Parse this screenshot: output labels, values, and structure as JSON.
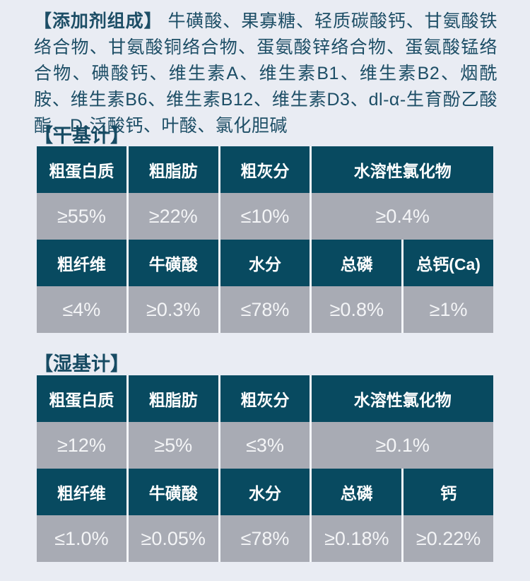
{
  "colors": {
    "background": "#e9ecf3",
    "header_cell": "#084a60",
    "value_cell": "#a8abb4",
    "body_text": "#1d4e66"
  },
  "additives": {
    "label": "【添加剂组成】",
    "text": "牛磺酸、果寡糖、轻质碳酸钙、甘氨酸铁络合物、甘氨酸铜络合物、蛋氨酸锌络合物、蛋氨酸锰络合物、碘酸钙、维生素A、维生素B1、维生素B2、烟酰胺、维生素B6、维生素B12、维生素D3、dl-α-生育酚乙酸酯、D-泛酸钙、叶酸、氯化胆碱"
  },
  "dry": {
    "title": "【干基计】",
    "r1h": [
      "粗蛋白质",
      "粗脂肪",
      "粗灰分",
      "水溶性氯化物"
    ],
    "r1v": [
      "≥55%",
      "≥22%",
      "≤10%",
      "≥0.4%"
    ],
    "r2h": [
      "粗纤维",
      "牛磺酸",
      "水分",
      "总磷",
      "总钙(Ca)"
    ],
    "r2v": [
      "≤4%",
      "≥0.3%",
      "≤78%",
      "≥0.8%",
      "≥1%"
    ]
  },
  "wet": {
    "title": "【湿基计】",
    "r1h": [
      "粗蛋白质",
      "粗脂肪",
      "粗灰分",
      "水溶性氯化物"
    ],
    "r1v": [
      "≥12%",
      "≥5%",
      "≤3%",
      "≥0.1%"
    ],
    "r2h": [
      "粗纤维",
      "牛磺酸",
      "水分",
      "总磷",
      "钙"
    ],
    "r2v": [
      "≤1.0%",
      "≥0.05%",
      "≤78%",
      "≥0.18%",
      "≥0.22%"
    ]
  }
}
